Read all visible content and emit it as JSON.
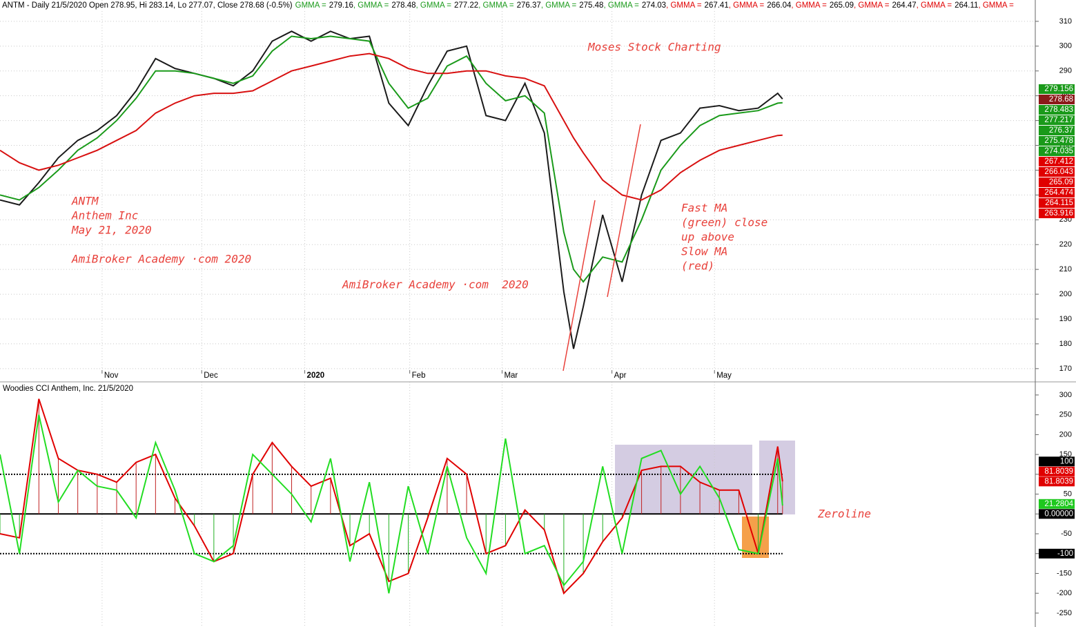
{
  "header": {
    "title": "ANTM - Daily 21/5/2020 Open 278.95, Hi 283.14, Lo 277.07, Close 278.68 (-0.5%)",
    "gmma": [
      {
        "label": "GMMA =",
        "value": 279.16,
        "color": "#1a9a1a"
      },
      {
        "label": ", GMMA =",
        "value": 278.48,
        "color": "#1a9a1a"
      },
      {
        "label": ", GMMA =",
        "value": 277.22,
        "color": "#1a9a1a"
      },
      {
        "label": ", GMMA =",
        "value": 276.37,
        "color": "#1a9a1a"
      },
      {
        "label": ", GMMA =",
        "value": 275.48,
        "color": "#1a9a1a"
      },
      {
        "label": ", GMMA =",
        "value": 274.03,
        "color": "#1a9a1a"
      },
      {
        "label": ", GMMA =",
        "value": 267.41,
        "color": "#e00000"
      },
      {
        "label": ", GMMA =",
        "value": 266.04,
        "color": "#e00000"
      },
      {
        "label": ", GMMA =",
        "value": 265.09,
        "color": "#e00000"
      },
      {
        "label": ", GMMA =",
        "value": 264.47,
        "color": "#e00000"
      },
      {
        "label": ", GMMA =",
        "value": 264.11,
        "color": "#e00000"
      }
    ],
    "trailing": ", GMMA ="
  },
  "annotations": [
    "Moses Stock Charting",
    "ANTM",
    "Anthem Inc",
    "May 21, 2020",
    "AmiBroker Academy ·com 2020",
    "AmiBroker Academy ·com  2020",
    "Fast MA",
    "(green) close",
    "up above",
    "Slow MA",
    "(red)",
    "Zeroline"
  ],
  "chart_data": [
    {
      "type": "line",
      "xlim": [
        0,
        213
      ],
      "xticks": [
        {
          "value": 21,
          "label": "Nov"
        },
        {
          "value": 41.5,
          "label": "Dec"
        },
        {
          "value": 62.7,
          "label": "2020"
        },
        {
          "value": 84.3,
          "label": "Feb"
        },
        {
          "value": 103.3,
          "label": "Mar"
        },
        {
          "value": 125.9,
          "label": "Apr"
        },
        {
          "value": 147,
          "label": "May"
        }
      ],
      "ylim": [
        169.4,
        318.6
      ],
      "yticks": [
        170,
        180,
        190,
        200,
        210,
        220,
        230,
        240,
        250,
        260,
        270,
        280,
        290,
        300,
        310
      ],
      "grid": true,
      "x": [
        0,
        4,
        8,
        12,
        16,
        20,
        24,
        28,
        32,
        36,
        40,
        44,
        48,
        52,
        56,
        60,
        64,
        68,
        72,
        76,
        80,
        84,
        88,
        92,
        96,
        100,
        104,
        108,
        112,
        116,
        118,
        120,
        124,
        128,
        132,
        136,
        140,
        144,
        148,
        152,
        156,
        160,
        161
      ],
      "series": [
        {
          "color": "#1a1a1a",
          "values": [
            238,
            236,
            245,
            255,
            262,
            266,
            272,
            282,
            295,
            291,
            289,
            287,
            284,
            290,
            302,
            306,
            302,
            306,
            303,
            304,
            277,
            268,
            284,
            298,
            300,
            272,
            270,
            285,
            265,
            201,
            178,
            195,
            232,
            205,
            240,
            262,
            265,
            275,
            276,
            274,
            275,
            281,
            278.68
          ]
        },
        {
          "color": "#1a9a1a",
          "values": [
            240,
            238,
            243,
            250,
            258,
            263,
            270,
            279,
            290,
            290,
            289,
            287,
            285,
            288,
            298,
            304,
            303,
            304,
            303,
            302,
            285,
            275,
            279,
            292,
            296,
            285,
            278,
            280,
            273,
            225,
            210,
            205,
            215,
            213,
            230,
            250,
            260,
            268,
            272,
            273,
            274,
            277,
            277.2
          ]
        },
        {
          "color": "#d81010",
          "values": [
            258,
            253,
            250,
            252,
            255,
            258,
            262,
            266,
            273,
            277,
            280,
            281,
            281,
            282,
            286,
            290,
            292,
            294,
            296,
            297,
            295,
            291,
            289,
            289,
            290,
            290,
            288,
            287,
            284,
            270,
            263,
            257,
            246,
            240,
            238,
            242,
            249,
            254,
            258,
            260,
            262,
            264,
            264.1
          ]
        }
      ],
      "tags": [
        {
          "value": 279.156,
          "color": "#1a9a1a"
        },
        {
          "value": 278.68,
          "color": "#8b1a1a"
        },
        {
          "value": 278.483,
          "color": "#1a9a1a"
        },
        {
          "value": 277.217,
          "color": "#1a9a1a"
        },
        {
          "value": 276.37,
          "color": "#1a9a1a"
        },
        {
          "value": 275.478,
          "color": "#1a9a1a"
        },
        {
          "value": 274.035,
          "color": "#1a9a1a"
        },
        {
          "value": 267.412,
          "color": "#e00000"
        },
        {
          "value": 266.043,
          "color": "#e00000"
        },
        {
          "value": 265.09,
          "color": "#e00000"
        },
        {
          "value": 264.474,
          "color": "#e00000"
        },
        {
          "value": 264.115,
          "color": "#e00000"
        },
        {
          "value": 263.916,
          "color": "#e00000"
        }
      ]
    },
    {
      "type": "line",
      "title": "Woodies CCI  Anthem, Inc. 21/5/2020",
      "xlim": [
        0,
        213
      ],
      "xticks": [
        21,
        41.5,
        62.7,
        84.3,
        103.3,
        125.9,
        147
      ],
      "ylim": [
        -285,
        333
      ],
      "yticks": [
        300,
        250,
        200,
        150,
        100,
        50,
        0,
        -50,
        -100,
        -150,
        -200,
        -250
      ],
      "grid": true,
      "stems": true,
      "ref_lines": [
        100,
        0,
        -100
      ],
      "x": [
        0,
        4,
        8,
        12,
        16,
        20,
        24,
        28,
        32,
        36,
        40,
        44,
        48,
        52,
        56,
        60,
        64,
        68,
        72,
        76,
        80,
        84,
        88,
        92,
        96,
        100,
        104,
        108,
        112,
        116,
        120,
        124,
        128,
        132,
        136,
        140,
        144,
        148,
        152,
        156,
        160,
        161
      ],
      "series": [
        {
          "color": "#e00000",
          "values": [
            -50,
            -60,
            290,
            140,
            110,
            100,
            80,
            130,
            150,
            40,
            -30,
            -120,
            -100,
            100,
            180,
            120,
            70,
            90,
            -80,
            -50,
            -170,
            -150,
            -10,
            140,
            100,
            -100,
            -80,
            10,
            -40,
            -200,
            -150,
            -70,
            -10,
            110,
            120,
            120,
            80,
            60,
            60,
            -100,
            170,
            81.8039
          ]
        },
        {
          "color": "#22dd22",
          "values": [
            150,
            -100,
            250,
            30,
            110,
            70,
            60,
            -10,
            180,
            60,
            -100,
            -120,
            -80,
            150,
            100,
            50,
            -20,
            140,
            -120,
            80,
            -200,
            70,
            -100,
            120,
            -60,
            -150,
            190,
            -100,
            -80,
            -180,
            -120,
            120,
            -100,
            140,
            160,
            50,
            120,
            40,
            -90,
            -100,
            140,
            21.2804
          ]
        }
      ],
      "tags": [
        {
          "value": 100,
          "color": "#000000"
        },
        {
          "value": 81.8039,
          "color": "#e00000"
        },
        {
          "value": 81.8039,
          "color": "#e00000"
        },
        {
          "value": 21.2804,
          "color": "#1ec81e"
        },
        {
          "value": {
            "value": 0,
            "label": "0.00000"
          },
          "color": "#000000"
        },
        {
          "value": -100,
          "color": "#000000"
        }
      ]
    }
  ]
}
